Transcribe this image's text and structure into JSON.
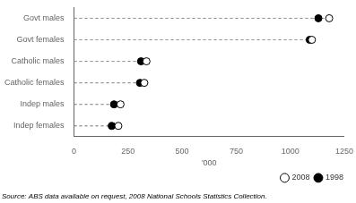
{
  "chart_data": {
    "type": "dot",
    "orientation": "horizontal",
    "categories": [
      "Govt males",
      "Govt females",
      "Catholic males",
      "Catholic females",
      "Indep males",
      "Indep females"
    ],
    "series": [
      {
        "name": "1998",
        "color": "black",
        "values": [
          1130,
          1090,
          310,
          305,
          185,
          175
        ]
      },
      {
        "name": "2008",
        "color": "white",
        "values": [
          1180,
          1100,
          335,
          325,
          215,
          205
        ]
      }
    ],
    "xlabel": "'000",
    "xlim": [
      0,
      1250
    ],
    "xticks": [
      0,
      250,
      500,
      750,
      1000,
      1250
    ],
    "grid": false,
    "legend": "lower right",
    "annotations": [
      "Source: ABS data available on request, 2008 National Schools Statistics Collection."
    ]
  }
}
